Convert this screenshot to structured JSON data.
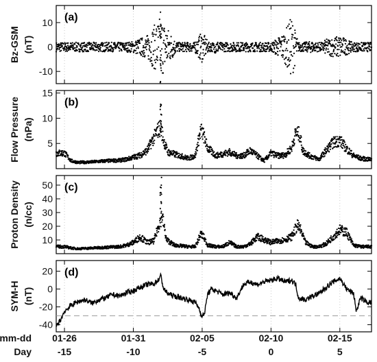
{
  "chart_data": [
    {
      "type": "scatter",
      "panel_label": "(a)",
      "ylabel": "Bz-GSM",
      "yunit": "(nT)",
      "ylim": [
        -15,
        17
      ],
      "yticks": [
        -10,
        0,
        10
      ],
      "reference_line": 0,
      "reference_style": "dashed",
      "series": [
        {
          "name": "",
          "x": [
            -15,
            -14,
            -13,
            -12,
            -11,
            -10,
            -9,
            -8,
            -7,
            -6.5,
            -6,
            -5,
            -4,
            -3,
            -2,
            -1,
            0,
            1,
            1.5,
            2,
            3,
            3.5,
            4,
            5,
            6,
            7
          ],
          "y": [
            0.5,
            1,
            -1,
            0.5,
            1,
            1.5,
            3,
            8,
            2,
            0.5,
            -1,
            4,
            -2,
            1,
            -1,
            0.5,
            1,
            4,
            8,
            1,
            1.5,
            0.5,
            2,
            3,
            1,
            1
          ]
        }
      ]
    },
    {
      "type": "scatter",
      "panel_label": "(b)",
      "ylabel": "Flow Pressure",
      "yunit": "(nPa)",
      "ylim": [
        0,
        15.5
      ],
      "yticks": [
        5,
        10,
        15
      ],
      "series": [
        {
          "name": "",
          "x": [
            -15,
            -14.5,
            -14,
            -13,
            -12,
            -11,
            -10.5,
            -10,
            -9.5,
            -9,
            -8.2,
            -8,
            -7.8,
            -7.5,
            -7,
            -6,
            -5.5,
            -5.1,
            -4.9,
            -4.6,
            -4,
            -3,
            -2.5,
            -2,
            -1.5,
            -1,
            -0.5,
            0,
            0.5,
            1,
            1.5,
            1.8,
            2.1,
            2.3,
            2.8,
            3.5,
            4,
            4.5,
            5,
            5.5,
            6,
            6.5,
            7
          ],
          "y": [
            3,
            1.5,
            1.2,
            1.3,
            1.5,
            1.6,
            1.8,
            2.2,
            2.6,
            3.5,
            7.5,
            8,
            5.5,
            3.2,
            2.8,
            2.0,
            2.5,
            7.5,
            6.5,
            4,
            2.5,
            3.2,
            2.5,
            2.5,
            3.5,
            2.5,
            1.5,
            3,
            2.5,
            2.6,
            4,
            7,
            6.5,
            3.5,
            2.5,
            1.8,
            3.5,
            5,
            5.5,
            3.8,
            2.5,
            2,
            1.8
          ]
        }
      ]
    },
    {
      "type": "scatter",
      "panel_label": "(c)",
      "ylabel": "Proton Density",
      "yunit": "(n/cc)",
      "ylim": [
        0,
        57
      ],
      "yticks": [
        10,
        20,
        30,
        40,
        50
      ],
      "series": [
        {
          "name": "",
          "x": [
            -15,
            -14.5,
            -14,
            -13,
            -12,
            -11,
            -10.5,
            -10,
            -9.5,
            -9,
            -8.5,
            -8.1,
            -7.9,
            -7.6,
            -7,
            -6,
            -5.5,
            -5.1,
            -4.9,
            -4.6,
            -4,
            -3.5,
            -3,
            -2.5,
            -2,
            -1.5,
            -1,
            -0.5,
            0,
            0.5,
            1,
            1.5,
            1.9,
            2.1,
            2.5,
            3,
            3.5,
            4,
            4.5,
            5,
            5.5,
            6,
            6.5,
            7
          ],
          "y": [
            5,
            4,
            3.5,
            4,
            4.5,
            5,
            6,
            8,
            12,
            8,
            9,
            22,
            27,
            10,
            6,
            5,
            5,
            14,
            12,
            6,
            5,
            5,
            8,
            5,
            5,
            7,
            12,
            10,
            8,
            9,
            10,
            12,
            20,
            18,
            8,
            5,
            5,
            7,
            12,
            17,
            15,
            6,
            5,
            5
          ]
        }
      ]
    },
    {
      "type": "line",
      "panel_label": "(d)",
      "ylabel": "SYM-H",
      "yunit": "(nT)",
      "ylim": [
        -48,
        32
      ],
      "yticks": [
        -40,
        -20,
        0,
        20
      ],
      "reference_line": -30,
      "reference_style": "dashed",
      "series": [
        {
          "name": "",
          "x": [
            -15.6,
            -15.3,
            -15,
            -14.5,
            -14,
            -13.5,
            -13,
            -12.5,
            -12,
            -11.5,
            -11,
            -10.5,
            -10,
            -9.5,
            -9,
            -8.5,
            -8.2,
            -8,
            -7.8,
            -7.5,
            -7,
            -6.5,
            -6,
            -5.5,
            -5.2,
            -5,
            -4.8,
            -4.6,
            -4.3,
            -4,
            -3.5,
            -3,
            -2.5,
            -2,
            -1.5,
            -1,
            -0.5,
            0,
            0.5,
            1,
            1.5,
            1.8,
            2,
            2.5,
            3,
            3.5,
            4,
            4.5,
            5,
            5.5,
            6,
            6.2,
            6.5,
            7
          ],
          "y": [
            -42,
            -35,
            -25,
            -18,
            -14,
            -12,
            -16,
            -12,
            -10,
            -6,
            -8,
            -4,
            -2,
            2,
            5,
            6,
            10,
            15,
            0,
            -5,
            -8,
            -10,
            -12,
            -15,
            -22,
            -32,
            -25,
            -5,
            0,
            -2,
            -6,
            -4,
            -10,
            5,
            8,
            5,
            8,
            10,
            12,
            8,
            10,
            5,
            -10,
            -12,
            -8,
            -5,
            2,
            8,
            12,
            0,
            -5,
            -25,
            -10,
            -15
          ]
        }
      ]
    }
  ],
  "x_axis": {
    "xlim": [
      -15.6,
      7.3
    ],
    "mmdd_label": "mm-dd",
    "day_label": "Day",
    "ticks": [
      {
        "day": -15,
        "date": "01-26",
        "day_label": "-15"
      },
      {
        "day": -10,
        "date": "01-31",
        "day_label": "-10"
      },
      {
        "day": -5,
        "date": "02-05",
        "day_label": "-5"
      },
      {
        "day": 0,
        "date": "02-10",
        "day_label": "0"
      },
      {
        "day": 5,
        "date": "02-15",
        "day_label": "5"
      }
    ]
  }
}
